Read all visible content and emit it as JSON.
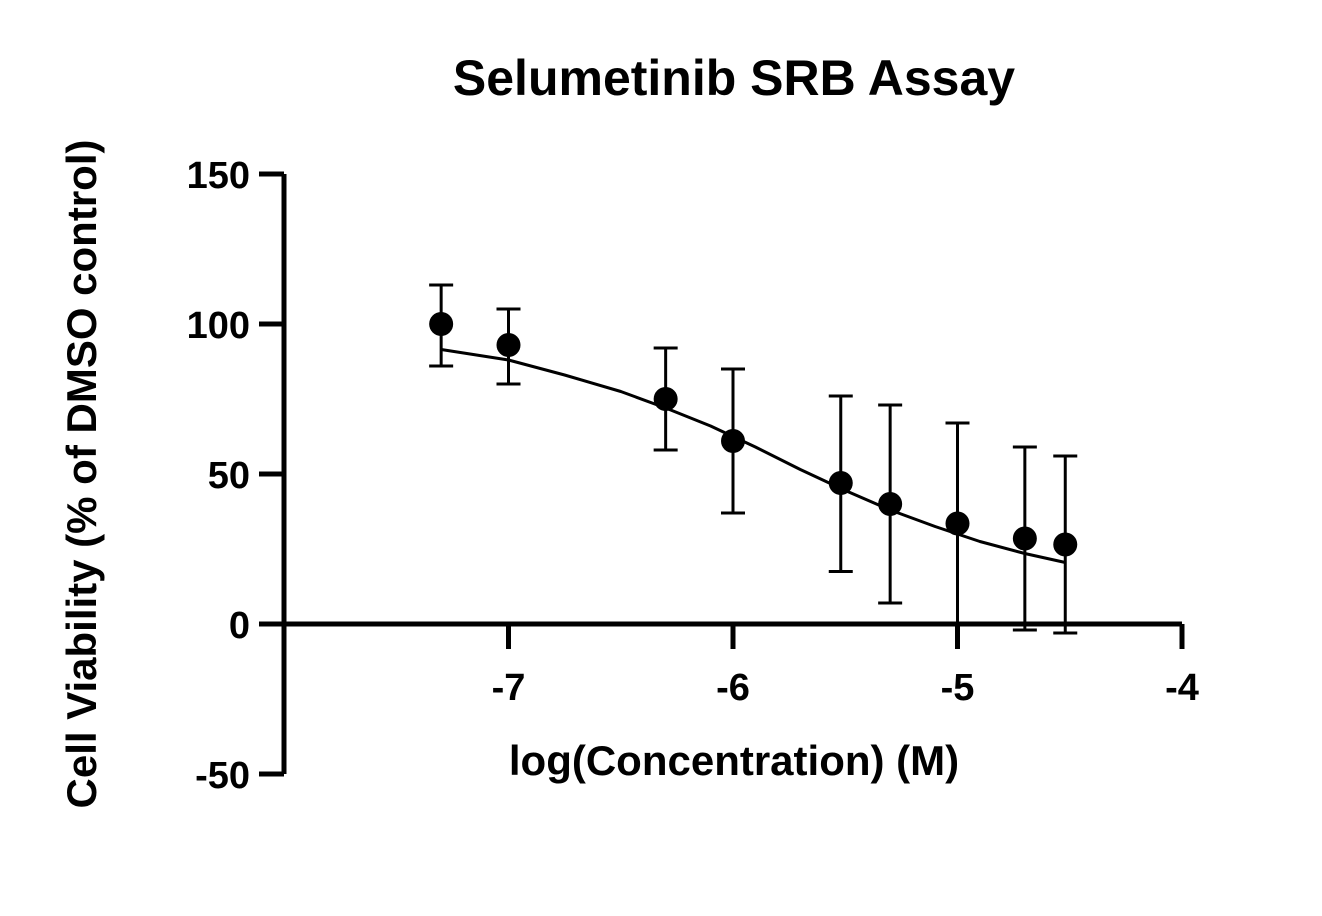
{
  "chart_data": {
    "type": "scatter",
    "title": "Selumetinib SRB Assay",
    "xlabel": "log(Concentration) (M)",
    "ylabel": "Cell Viability (% of DMSO control)",
    "xlim": [
      -8,
      -4
    ],
    "ylim": [
      -50,
      150
    ],
    "x_ticks": [
      -7,
      -6,
      -5,
      -4
    ],
    "y_ticks": [
      -50,
      0,
      50,
      100,
      150
    ],
    "x_tick_labels": [
      "-7",
      "-6",
      "-5",
      "-4"
    ],
    "y_tick_labels": [
      "-50",
      "0",
      "50",
      "100",
      "150"
    ],
    "grid": false,
    "legend": "none",
    "marker_color": "#000000",
    "series": [
      {
        "points": [
          {
            "x": -7.3,
            "y": 100,
            "err_low": 86,
            "err_high": 113
          },
          {
            "x": -7.0,
            "y": 93,
            "err_low": 80,
            "err_high": 105
          },
          {
            "x": -6.3,
            "y": 75,
            "err_low": 58,
            "err_high": 92
          },
          {
            "x": -6.0,
            "y": 61,
            "err_low": 37,
            "err_high": 85
          },
          {
            "x": -5.52,
            "y": 47,
            "err_low": 17.5,
            "err_high": 76
          },
          {
            "x": -5.3,
            "y": 40,
            "err_low": 7,
            "err_high": 73
          },
          {
            "x": -5.0,
            "y": 33.5,
            "err_low": 0,
            "err_high": 67
          },
          {
            "x": -4.7,
            "y": 28.5,
            "err_low": -2,
            "err_high": 59
          },
          {
            "x": -4.52,
            "y": 26.5,
            "err_low": -3,
            "err_high": 56
          }
        ]
      }
    ],
    "fit_curve": {
      "x": [
        -7.3,
        -7.0,
        -6.75,
        -6.5,
        -6.3,
        -6.1,
        -5.9,
        -5.7,
        -5.5,
        -5.3,
        -5.1,
        -4.9,
        -4.7,
        -4.52
      ],
      "y": [
        91.5,
        88,
        83,
        77.5,
        72,
        66,
        59,
        51.5,
        44.5,
        38,
        32.5,
        27.5,
        23.5,
        20.5
      ]
    }
  }
}
